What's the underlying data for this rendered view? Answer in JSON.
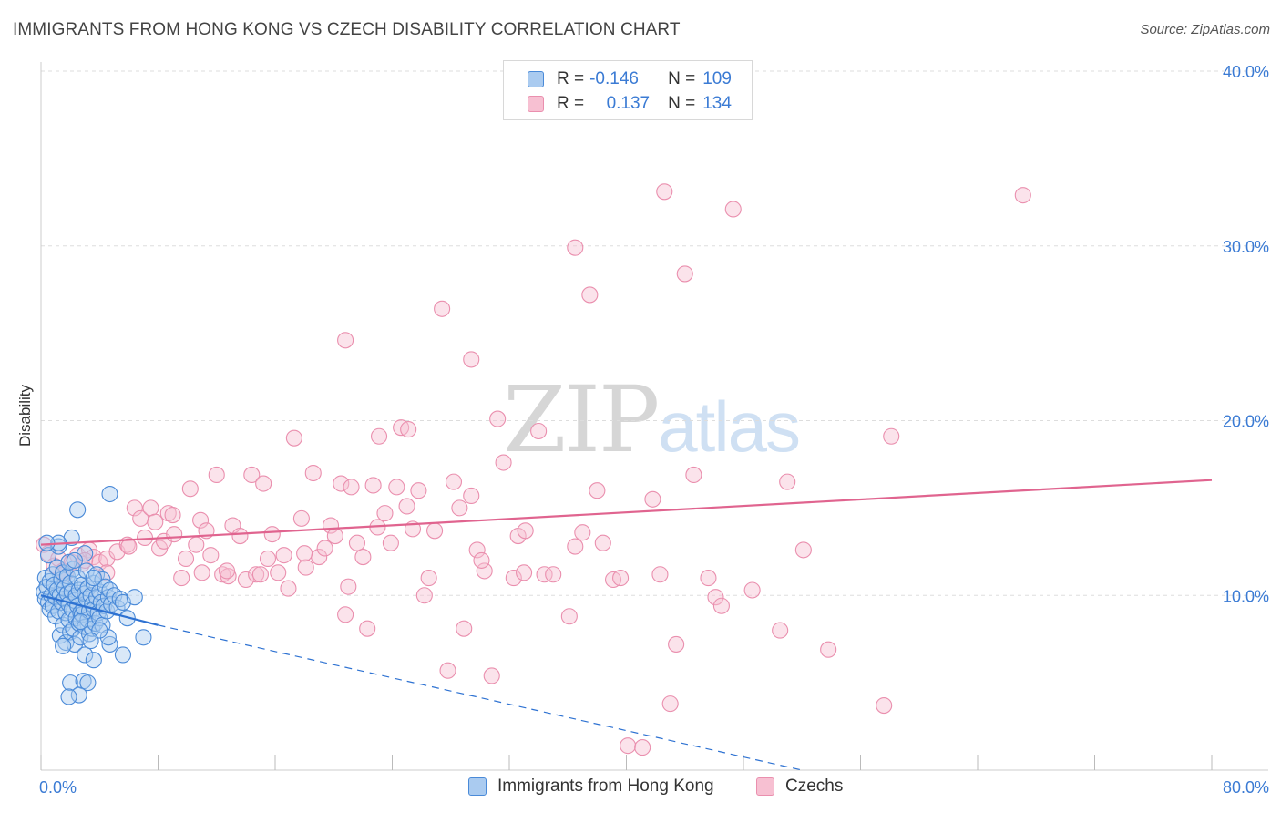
{
  "title": "IMMIGRANTS FROM HONG KONG VS CZECH DISABILITY CORRELATION CHART",
  "source": "Source: ZipAtlas.com",
  "watermark": {
    "zip": "ZIP",
    "atlas": "atlas"
  },
  "legend_top": [
    {
      "r_label": "R =",
      "r_value": "-0.146",
      "n_label": "N =",
      "n_value": "109"
    },
    {
      "r_label": "R =",
      "r_value": "0.137",
      "n_label": "N =",
      "n_value": "134"
    }
  ],
  "legend_bottom": [
    {
      "label": "Immigrants from Hong Kong"
    },
    {
      "label": "Czechs"
    }
  ],
  "colors": {
    "blue_fill": "#aacbf0",
    "blue_stroke": "#4a8ad8",
    "blue_line": "#2e72d2",
    "pink_fill": "#f7c0d2",
    "pink_stroke": "#ea8fae",
    "pink_line": "#e0648f",
    "tick_label": "#3b7bd4",
    "grid": "#dddddd"
  },
  "chart_data": {
    "type": "scatter",
    "title": "IMMIGRANTS FROM HONG KONG VS CZECH DISABILITY CORRELATION CHART",
    "xlabel": "",
    "ylabel": "Disability",
    "xlim": [
      0,
      80
    ],
    "ylim": [
      0,
      40
    ],
    "x_tick_labels": [
      "0.0%",
      "80.0%"
    ],
    "y_ticks": [
      10,
      20,
      30,
      40
    ],
    "y_tick_labels": [
      "10.0%",
      "20.0%",
      "30.0%",
      "40.0%"
    ],
    "grid": "horizontal dashed",
    "legend_position": "top-center and bottom",
    "series": [
      {
        "name": "Immigrants from Hong Kong",
        "R": -0.146,
        "N": 109,
        "trend": {
          "solid": [
            [
              0,
              10.0
            ],
            [
              8,
              8.3
            ]
          ],
          "dashed": [
            [
              8,
              8.3
            ],
            [
              52,
              0.0
            ]
          ]
        },
        "points": [
          [
            0.2,
            10.2
          ],
          [
            0.3,
            9.8
          ],
          [
            0.3,
            11.0
          ],
          [
            0.4,
            10.5
          ],
          [
            0.5,
            9.6
          ],
          [
            0.5,
            12.3
          ],
          [
            0.6,
            10.8
          ],
          [
            0.6,
            9.2
          ],
          [
            0.7,
            10.0
          ],
          [
            0.8,
            11.2
          ],
          [
            0.8,
            9.4
          ],
          [
            0.9,
            10.6
          ],
          [
            1.0,
            9.9
          ],
          [
            1.0,
            8.8
          ],
          [
            1.1,
            10.3
          ],
          [
            1.1,
            11.6
          ],
          [
            1.2,
            9.1
          ],
          [
            1.2,
            12.8
          ],
          [
            1.3,
            10.0
          ],
          [
            1.3,
            7.7
          ],
          [
            1.4,
            9.6
          ],
          [
            1.4,
            10.9
          ],
          [
            1.5,
            8.3
          ],
          [
            1.5,
            11.3
          ],
          [
            1.6,
            9.8
          ],
          [
            1.6,
            10.4
          ],
          [
            1.7,
            7.3
          ],
          [
            1.7,
            9.0
          ],
          [
            1.8,
            10.1
          ],
          [
            1.8,
            11.1
          ],
          [
            1.9,
            8.6
          ],
          [
            1.9,
            9.5
          ],
          [
            2.0,
            10.7
          ],
          [
            2.0,
            7.9
          ],
          [
            2.1,
            9.2
          ],
          [
            2.1,
            10.2
          ],
          [
            2.2,
            8.1
          ],
          [
            2.2,
            11.5
          ],
          [
            2.3,
            9.7
          ],
          [
            2.3,
            7.2
          ],
          [
            2.4,
            10.0
          ],
          [
            2.4,
            8.7
          ],
          [
            2.5,
            9.4
          ],
          [
            2.5,
            11.0
          ],
          [
            2.6,
            8.4
          ],
          [
            2.6,
            10.3
          ],
          [
            2.7,
            9.0
          ],
          [
            2.7,
            7.6
          ],
          [
            2.8,
            10.6
          ],
          [
            2.8,
            8.9
          ],
          [
            2.9,
            9.3
          ],
          [
            3.0,
            10.1
          ],
          [
            3.0,
            8.2
          ],
          [
            3.1,
            9.8
          ],
          [
            3.1,
            11.4
          ],
          [
            3.2,
            8.6
          ],
          [
            3.2,
            10.4
          ],
          [
            3.3,
            9.1
          ],
          [
            3.3,
            7.8
          ],
          [
            3.4,
            10.0
          ],
          [
            3.5,
            9.5
          ],
          [
            3.5,
            8.1
          ],
          [
            3.6,
            10.7
          ],
          [
            3.6,
            9.2
          ],
          [
            3.7,
            8.4
          ],
          [
            3.8,
            9.9
          ],
          [
            3.8,
            11.2
          ],
          [
            3.9,
            9.0
          ],
          [
            4.0,
            10.2
          ],
          [
            4.0,
            8.7
          ],
          [
            4.1,
            9.6
          ],
          [
            4.2,
            10.9
          ],
          [
            4.2,
            8.3
          ],
          [
            4.3,
            9.4
          ],
          [
            4.4,
            10.5
          ],
          [
            4.5,
            9.1
          ],
          [
            4.6,
            9.9
          ],
          [
            4.7,
            10.3
          ],
          [
            4.8,
            9.5
          ],
          [
            5.0,
            10.0
          ],
          [
            5.2,
            9.3
          ],
          [
            5.4,
            9.8
          ],
          [
            5.6,
            9.6
          ],
          [
            5.9,
            8.7
          ],
          [
            6.4,
            9.9
          ],
          [
            7.0,
            7.6
          ],
          [
            4.7,
            15.8
          ],
          [
            2.5,
            14.9
          ],
          [
            2.1,
            13.3
          ],
          [
            1.2,
            13.0
          ],
          [
            3.0,
            12.4
          ],
          [
            3.6,
            11.0
          ],
          [
            0.4,
            13.0
          ],
          [
            1.9,
            11.9
          ],
          [
            2.3,
            12.0
          ],
          [
            2.0,
            5.0
          ],
          [
            2.9,
            5.1
          ],
          [
            3.2,
            5.0
          ],
          [
            2.6,
            4.3
          ],
          [
            1.9,
            4.2
          ],
          [
            3.0,
            6.6
          ],
          [
            3.6,
            6.3
          ],
          [
            4.7,
            7.2
          ],
          [
            5.6,
            6.6
          ],
          [
            4.6,
            7.6
          ],
          [
            4.0,
            8.0
          ],
          [
            2.7,
            8.5
          ],
          [
            1.5,
            7.1
          ],
          [
            3.4,
            7.4
          ]
        ]
      },
      {
        "name": "Czechs",
        "R": 0.137,
        "N": 134,
        "trend": {
          "solid": [
            [
              0,
              12.9
            ],
            [
              80,
              16.6
            ]
          ]
        },
        "points": [
          [
            0.2,
            12.9
          ],
          [
            0.5,
            12.4
          ],
          [
            0.9,
            11.7
          ],
          [
            1.2,
            12.1
          ],
          [
            1.5,
            11.4
          ],
          [
            1.7,
            11.3
          ],
          [
            2.1,
            11.9
          ],
          [
            2.5,
            12.3
          ],
          [
            2.8,
            11.8
          ],
          [
            3.3,
            12.6
          ],
          [
            3.6,
            12.2
          ],
          [
            4.0,
            11.9
          ],
          [
            4.5,
            12.1
          ],
          [
            5.2,
            12.5
          ],
          [
            5.9,
            12.9
          ],
          [
            6.4,
            15.0
          ],
          [
            6.8,
            14.4
          ],
          [
            7.1,
            13.3
          ],
          [
            7.5,
            15.0
          ],
          [
            7.8,
            14.2
          ],
          [
            8.1,
            12.7
          ],
          [
            8.4,
            13.1
          ],
          [
            8.7,
            14.7
          ],
          [
            9.1,
            13.5
          ],
          [
            9.6,
            11.0
          ],
          [
            9.9,
            12.1
          ],
          [
            10.2,
            16.1
          ],
          [
            10.6,
            12.9
          ],
          [
            10.9,
            14.3
          ],
          [
            11.3,
            13.7
          ],
          [
            11.6,
            12.3
          ],
          [
            12.0,
            16.9
          ],
          [
            12.4,
            11.2
          ],
          [
            12.8,
            11.1
          ],
          [
            13.1,
            14.0
          ],
          [
            13.6,
            13.4
          ],
          [
            14.0,
            10.9
          ],
          [
            14.4,
            16.9
          ],
          [
            14.7,
            11.2
          ],
          [
            15.2,
            16.4
          ],
          [
            15.5,
            12.1
          ],
          [
            15.8,
            13.5
          ],
          [
            16.2,
            11.3
          ],
          [
            16.6,
            12.3
          ],
          [
            16.9,
            10.4
          ],
          [
            17.3,
            19.0
          ],
          [
            17.8,
            14.4
          ],
          [
            18.1,
            11.6
          ],
          [
            18.6,
            17.0
          ],
          [
            19.0,
            12.2
          ],
          [
            19.4,
            12.7
          ],
          [
            19.8,
            14.0
          ],
          [
            20.1,
            13.4
          ],
          [
            20.5,
            16.4
          ],
          [
            20.8,
            8.9
          ],
          [
            21.2,
            16.2
          ],
          [
            21.6,
            13.0
          ],
          [
            22.0,
            12.2
          ],
          [
            22.3,
            8.1
          ],
          [
            22.7,
            16.3
          ],
          [
            23.0,
            13.9
          ],
          [
            23.5,
            14.7
          ],
          [
            23.9,
            13.0
          ],
          [
            24.3,
            16.2
          ],
          [
            24.6,
            19.6
          ],
          [
            25.1,
            19.5
          ],
          [
            25.4,
            13.8
          ],
          [
            25.8,
            16.0
          ],
          [
            26.2,
            10.0
          ],
          [
            26.5,
            11.0
          ],
          [
            26.9,
            13.7
          ],
          [
            27.4,
            26.4
          ],
          [
            27.8,
            5.7
          ],
          [
            28.2,
            16.5
          ],
          [
            28.6,
            15.0
          ],
          [
            28.9,
            8.1
          ],
          [
            29.4,
            15.7
          ],
          [
            29.8,
            12.6
          ],
          [
            30.3,
            11.4
          ],
          [
            30.8,
            5.4
          ],
          [
            31.2,
            20.1
          ],
          [
            31.6,
            17.6
          ],
          [
            32.3,
            11.0
          ],
          [
            32.6,
            13.4
          ],
          [
            33.1,
            13.7
          ],
          [
            34.0,
            19.4
          ],
          [
            34.4,
            11.2
          ],
          [
            35.0,
            11.2
          ],
          [
            36.1,
            8.8
          ],
          [
            36.5,
            12.8
          ],
          [
            37.0,
            13.6
          ],
          [
            37.5,
            27.2
          ],
          [
            38.0,
            16.0
          ],
          [
            38.4,
            13.0
          ],
          [
            39.1,
            10.9
          ],
          [
            39.6,
            11.0
          ],
          [
            40.1,
            1.4
          ],
          [
            41.1,
            1.3
          ],
          [
            41.8,
            15.5
          ],
          [
            42.3,
            11.2
          ],
          [
            43.0,
            3.8
          ],
          [
            43.4,
            7.2
          ],
          [
            44.0,
            28.4
          ],
          [
            44.6,
            16.9
          ],
          [
            45.6,
            11.0
          ],
          [
            46.1,
            9.9
          ],
          [
            46.5,
            9.4
          ],
          [
            47.3,
            32.1
          ],
          [
            48.6,
            10.3
          ],
          [
            50.5,
            8.0
          ],
          [
            51.0,
            16.5
          ],
          [
            52.1,
            12.6
          ],
          [
            53.8,
            6.9
          ],
          [
            57.6,
            3.7
          ],
          [
            58.1,
            19.1
          ],
          [
            67.1,
            32.9
          ],
          [
            36.5,
            29.9
          ],
          [
            42.6,
            33.1
          ],
          [
            29.4,
            23.5
          ],
          [
            20.8,
            24.6
          ],
          [
            23.1,
            19.1
          ],
          [
            25.0,
            15.1
          ],
          [
            30.1,
            12.0
          ],
          [
            33.0,
            11.3
          ],
          [
            12.7,
            11.4
          ],
          [
            9.0,
            14.6
          ],
          [
            6.0,
            12.8
          ],
          [
            4.5,
            11.3
          ],
          [
            3.0,
            12.0
          ],
          [
            1.5,
            11.2
          ],
          [
            15.0,
            11.2
          ],
          [
            18.0,
            12.4
          ],
          [
            21.0,
            10.5
          ],
          [
            11.0,
            11.3
          ]
        ]
      }
    ]
  }
}
